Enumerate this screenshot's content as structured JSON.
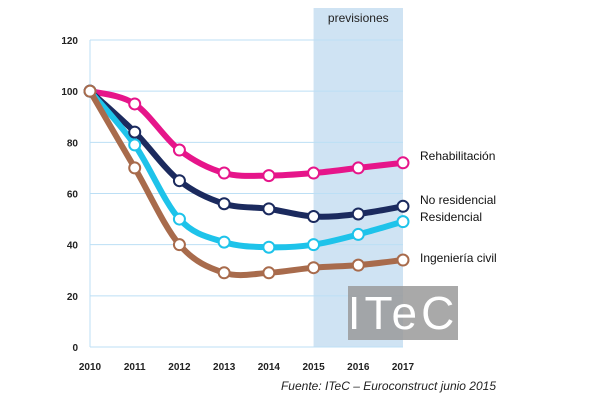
{
  "chart_data": {
    "type": "line",
    "x": [
      2010,
      2011,
      2012,
      2013,
      2014,
      2015,
      2016,
      2017
    ],
    "x_tick_labels": [
      "2010",
      "2011",
      "2012",
      "2013",
      "2014",
      "2015",
      "2016",
      "2017"
    ],
    "y_ticks": [
      0,
      20,
      40,
      60,
      80,
      100,
      120
    ],
    "y_tick_labels": [
      "0",
      "20",
      "40",
      "60",
      "80",
      "100",
      "120"
    ],
    "ylim": [
      0,
      120
    ],
    "xlim": [
      2010,
      2017
    ],
    "grid": "horizontal",
    "forecast": {
      "label": "previsiones",
      "x_start": 2015,
      "x_end": 2017,
      "color": "#cfe3f3"
    },
    "series": [
      {
        "name": "Rehabilitación",
        "color": "#e6158a",
        "values": [
          100,
          95,
          77,
          68,
          67,
          68,
          70,
          72
        ]
      },
      {
        "name": "No residencial",
        "color": "#1b2a5e",
        "values": [
          100,
          84,
          65,
          56,
          54,
          51,
          52,
          55
        ]
      },
      {
        "name": "Residencial",
        "color": "#1ec3ea",
        "values": [
          100,
          79,
          50,
          41,
          39,
          40,
          44,
          49
        ]
      },
      {
        "name": "Ingeniería civil",
        "color": "#a86b4c",
        "values": [
          100,
          70,
          40,
          29,
          29,
          31,
          32,
          34
        ]
      }
    ],
    "source": "Fuente: ITeC – Euroconstruct junio 2015",
    "logo": "ITeC"
  }
}
